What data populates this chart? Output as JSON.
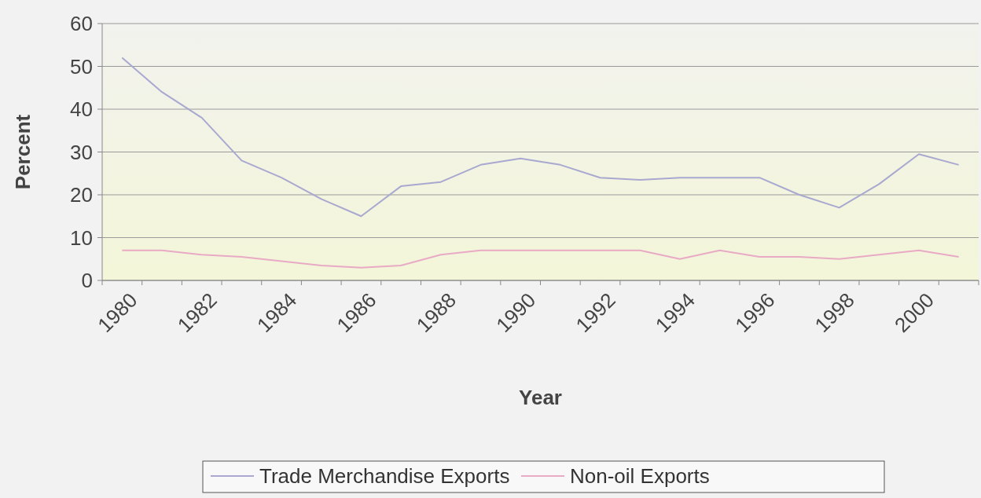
{
  "chart_data": {
    "type": "line",
    "xlabel": "Year",
    "ylabel": "Percent",
    "categories": [
      "1980",
      null,
      "1982",
      null,
      "1984",
      null,
      "1986",
      null,
      "1988",
      null,
      "1990",
      null,
      "1992",
      null,
      "1994",
      null,
      "1996",
      null,
      "1998",
      null,
      "2000",
      null
    ],
    "series": [
      {
        "name": "Trade Merchandise Exports",
        "color": "#a8a8d0",
        "values": [
          52,
          44,
          38,
          28,
          24,
          19,
          15,
          22,
          23,
          27,
          28.5,
          27,
          24,
          23.5,
          24,
          24,
          24,
          20,
          17,
          22.5,
          29.5,
          27
        ]
      },
      {
        "name": "Non-oil Exports",
        "color": "#e8aac4",
        "values": [
          7,
          7,
          6,
          5.5,
          4.5,
          3.5,
          3,
          3.5,
          6,
          7,
          7,
          7,
          7,
          7,
          5,
          7,
          5.5,
          5.5,
          5,
          6,
          7,
          5.5
        ]
      }
    ],
    "ylim": [
      0,
      60
    ],
    "yticks": [
      0,
      10,
      20,
      30,
      40,
      50,
      60
    ],
    "grid": "y",
    "legend": "bottom",
    "marker": "none",
    "line_style": "solid"
  }
}
